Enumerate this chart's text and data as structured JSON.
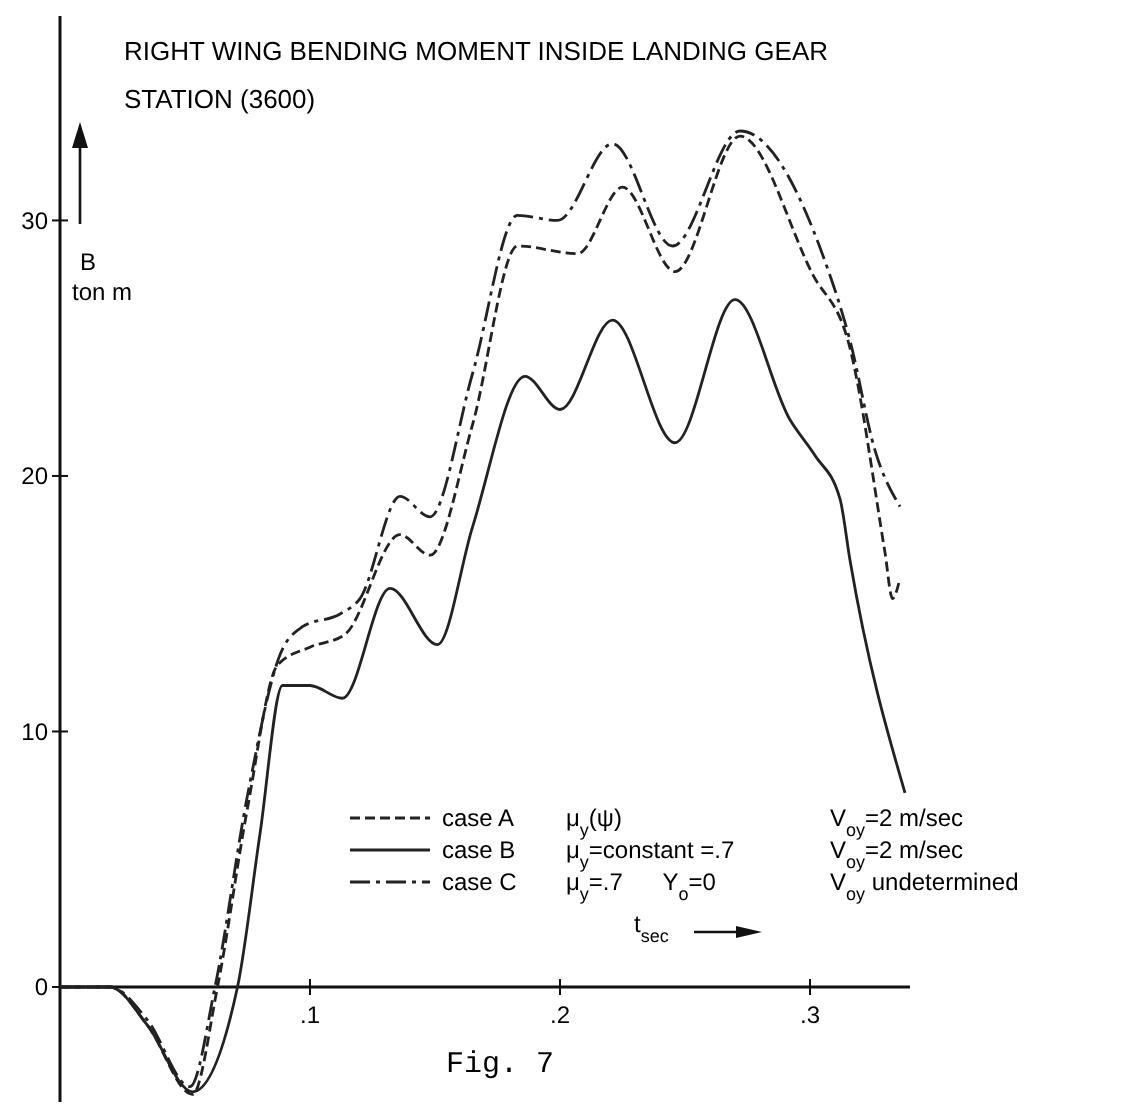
{
  "chart_data": {
    "type": "line",
    "title": "RIGHT WING BENDING MOMENT INSIDE LANDING GEAR STATION (3600)",
    "ylabel": "B ton m",
    "xlabel": "t$_{sec}$",
    "xlim": [
      0,
      0.34
    ],
    "ylim": [
      -4.5,
      38
    ],
    "xticks": [
      {
        "value": 0.1,
        "label": ".1"
      },
      {
        "value": 0.2,
        "label": ".2"
      },
      {
        "value": 0.3,
        "label": ".3"
      }
    ],
    "yticks": [
      0,
      10,
      20,
      30
    ],
    "legend": "bottom",
    "grid": false,
    "annotations": [
      "μ$_{y}$(ψ)",
      "V$_{oy}$=2 m/sec",
      "μ$_{y}$=constant =.7",
      "V$_{oy}$=2 m/sec",
      "μ$_{y}$=.7      Y$_{o}$=0",
      "V$_{oy}$ undetermined",
      "Fig. 7"
    ],
    "series": [
      {
        "name": "case A",
        "color": "#222222",
        "line_style": "dashed",
        "x": [
          0,
          0.02,
          0.035,
          0.053,
          0.063,
          0.075,
          0.087,
          0.1,
          0.114,
          0.136,
          0.148,
          0.165,
          0.183,
          0.207,
          0.225,
          0.246,
          0.272,
          0.301,
          0.316,
          0.33,
          0.333,
          0.336
        ],
        "values": [
          0,
          0,
          -1.5,
          -4.2,
          0,
          7,
          12.6,
          13.3,
          13.8,
          17.7,
          16.9,
          22,
          29,
          28.7,
          31.3,
          28,
          33.3,
          27.9,
          25,
          17,
          15.2,
          16
        ]
      },
      {
        "name": "case B",
        "color": "#222222",
        "line_style": "solid",
        "x": [
          0,
          0.02,
          0.035,
          0.053,
          0.071,
          0.08,
          0.089,
          0.1,
          0.113,
          0.132,
          0.151,
          0.165,
          0.186,
          0.2,
          0.221,
          0.246,
          0.27,
          0.292,
          0.302,
          0.312,
          0.316,
          0.338
        ],
        "values": [
          0,
          0,
          -1.5,
          -4.1,
          0,
          6,
          11.8,
          11.8,
          11.3,
          15.6,
          13.4,
          18,
          23.9,
          22.6,
          26.1,
          21.3,
          26.9,
          22.2,
          20.8,
          19.1,
          16.7,
          7.6
        ]
      },
      {
        "name": "case C",
        "color": "#222222",
        "line_style": "dashdot",
        "x": [
          0,
          0.02,
          0.035,
          0.052,
          0.062,
          0.075,
          0.088,
          0.097,
          0.112,
          0.12,
          0.136,
          0.148,
          0.165,
          0.183,
          0.199,
          0.221,
          0.245,
          0.272,
          0.306,
          0.316,
          0.326,
          0.336
        ],
        "values": [
          0,
          0,
          -1.3,
          -3.9,
          0,
          7.5,
          13,
          14.1,
          14.6,
          15.2,
          19.2,
          18.4,
          24,
          30.2,
          30,
          33,
          29,
          33.5,
          28.4,
          25.3,
          21,
          18.8
        ]
      }
    ]
  }
}
